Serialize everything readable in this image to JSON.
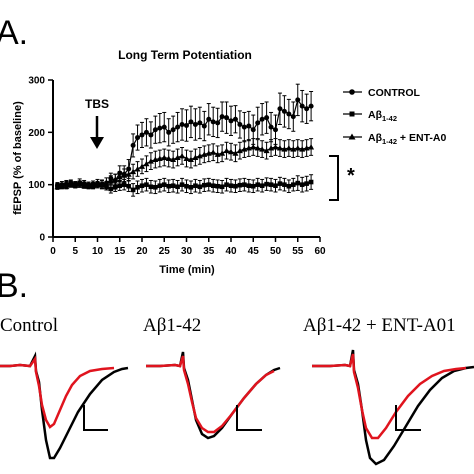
{
  "panel_a_letter": "A.",
  "panel_b_letter": "B.",
  "chart_data": {
    "type": "line",
    "title": "Long Term Potentiation",
    "xlabel": "Time (min)",
    "ylabel": "fEPSP (% of baseline)",
    "xlim": [
      0,
      60
    ],
    "ylim": [
      0,
      300
    ],
    "xticks": [
      0,
      5,
      10,
      15,
      20,
      25,
      30,
      35,
      40,
      45,
      50,
      55,
      60
    ],
    "yticks": [
      0,
      100,
      200,
      300
    ],
    "annotations": [
      {
        "text": "TBS",
        "x": 10,
        "kind": "arrow"
      },
      {
        "text": "*",
        "kind": "significance-bracket",
        "y_range": [
          105,
          170
        ]
      }
    ],
    "legend": {
      "placement": "right"
    },
    "series": [
      {
        "name": "CONTROL",
        "marker": "circle",
        "x": [
          1,
          2,
          3,
          4,
          5,
          6,
          7,
          8,
          9,
          10,
          11,
          12,
          13,
          14,
          15,
          16,
          17,
          18,
          19,
          20,
          21,
          22,
          23,
          24,
          25,
          26,
          27,
          28,
          29,
          30,
          31,
          32,
          33,
          34,
          35,
          36,
          37,
          38,
          39,
          40,
          41,
          42,
          43,
          44,
          45,
          46,
          47,
          48,
          49,
          50,
          51,
          52,
          53,
          54,
          55,
          56,
          57,
          58
        ],
        "values": [
          98,
          100,
          101,
          103,
          100,
          104,
          102,
          99,
          101,
          103,
          100,
          98,
          112,
          108,
          122,
          120,
          130,
          175,
          190,
          195,
          200,
          195,
          205,
          208,
          210,
          200,
          205,
          210,
          215,
          213,
          220,
          215,
          218,
          212,
          225,
          220,
          218,
          230,
          228,
          222,
          225,
          215,
          210,
          212,
          205,
          218,
          225,
          228,
          210,
          205,
          245,
          240,
          235,
          230,
          262,
          250,
          245,
          250
        ],
        "error": [
          6,
          6,
          7,
          6,
          6,
          7,
          6,
          6,
          6,
          7,
          8,
          8,
          10,
          12,
          14,
          16,
          18,
          22,
          24,
          24,
          26,
          25,
          26,
          28,
          28,
          26,
          26,
          28,
          30,
          30,
          30,
          30,
          30,
          28,
          30,
          28,
          28,
          28,
          30,
          28,
          26,
          26,
          28,
          28,
          28,
          30,
          30,
          30,
          28,
          28,
          30,
          30,
          28,
          28,
          30,
          30,
          28,
          28
        ]
      },
      {
        "name": "Aβ1-42",
        "marker": "square",
        "x": [
          1,
          2,
          3,
          4,
          5,
          6,
          7,
          8,
          9,
          10,
          11,
          12,
          13,
          14,
          15,
          16,
          17,
          18,
          19,
          20,
          21,
          22,
          23,
          24,
          25,
          26,
          27,
          28,
          29,
          30,
          31,
          32,
          33,
          34,
          35,
          36,
          37,
          38,
          39,
          40,
          41,
          42,
          43,
          44,
          45,
          46,
          47,
          48,
          49,
          50,
          51,
          52,
          53,
          54,
          55,
          56,
          57,
          58
        ],
        "values": [
          98,
          97,
          100,
          102,
          99,
          101,
          100,
          98,
          97,
          100,
          99,
          96,
          92,
          95,
          98,
          100,
          97,
          90,
          95,
          98,
          100,
          96,
          95,
          98,
          100,
          97,
          98,
          96,
          100,
          97,
          95,
          98,
          96,
          99,
          100,
          98,
          97,
          96,
          100,
          98,
          97,
          99,
          100,
          98,
          97,
          100,
          98,
          101,
          100,
          98,
          102,
          100,
          97,
          100,
          103,
          100,
          102,
          105
        ],
        "error": [
          5,
          5,
          6,
          5,
          5,
          6,
          5,
          5,
          5,
          6,
          6,
          6,
          8,
          8,
          9,
          10,
          10,
          12,
          12,
          12,
          12,
          12,
          12,
          12,
          12,
          12,
          12,
          12,
          12,
          12,
          12,
          12,
          12,
          12,
          12,
          12,
          12,
          12,
          12,
          12,
          12,
          12,
          12,
          12,
          12,
          12,
          12,
          12,
          12,
          12,
          12,
          12,
          12,
          12,
          14,
          14,
          14,
          14
        ]
      },
      {
        "name": "Aβ1-42 + ENT-A0",
        "marker": "triangle",
        "x": [
          1,
          2,
          3,
          4,
          5,
          6,
          7,
          8,
          9,
          10,
          11,
          12,
          13,
          14,
          15,
          16,
          17,
          18,
          19,
          20,
          21,
          22,
          23,
          24,
          25,
          26,
          27,
          28,
          29,
          30,
          31,
          32,
          33,
          34,
          35,
          36,
          37,
          38,
          39,
          40,
          41,
          42,
          43,
          44,
          45,
          46,
          47,
          48,
          49,
          50,
          51,
          52,
          53,
          54,
          55,
          56,
          57,
          58
        ],
        "values": [
          96,
          98,
          97,
          100,
          99,
          101,
          98,
          97,
          99,
          100,
          102,
          105,
          108,
          110,
          115,
          118,
          120,
          125,
          130,
          135,
          140,
          145,
          148,
          150,
          152,
          150,
          148,
          152,
          155,
          150,
          148,
          152,
          155,
          158,
          160,
          162,
          158,
          160,
          165,
          163,
          160,
          165,
          168,
          170,
          172,
          170,
          168,
          165,
          170,
          172,
          170,
          168,
          170,
          168,
          170,
          168,
          170,
          172
        ],
        "error": [
          5,
          5,
          5,
          5,
          5,
          6,
          5,
          5,
          5,
          6,
          7,
          8,
          9,
          10,
          10,
          12,
          12,
          14,
          14,
          14,
          15,
          16,
          16,
          16,
          16,
          16,
          16,
          16,
          16,
          16,
          16,
          16,
          16,
          16,
          16,
          16,
          16,
          16,
          16,
          16,
          16,
          16,
          16,
          16,
          16,
          16,
          16,
          16,
          16,
          16,
          16,
          16,
          16,
          16,
          16,
          16,
          16,
          16
        ]
      }
    ]
  },
  "legend_labels": {
    "control": "CONTROL",
    "abeta_base": "Aβ",
    "abeta_sub": "1-42",
    "combo_base": "Aβ",
    "combo_sub": "1-42",
    "combo_suffix": " + ENT-A0"
  },
  "traces": {
    "titles": [
      "Control",
      "Aβ1-42",
      "Aβ1-42 + ENT-A01"
    ],
    "colors": {
      "baseline": "#000000",
      "post_tbs": "#e0141e"
    }
  }
}
